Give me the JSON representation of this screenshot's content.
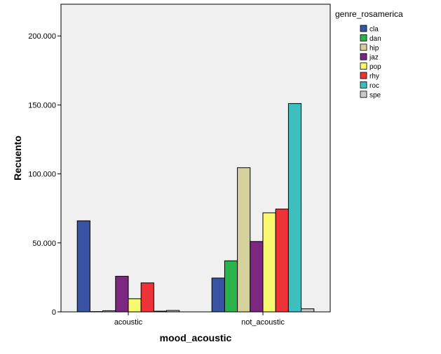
{
  "chart_data": {
    "type": "bar",
    "categories": [
      "acoustic",
      "not_acoustic"
    ],
    "series": [
      {
        "name": "cla",
        "color": "#3953a4",
        "values": [
          66000,
          24500
        ]
      },
      {
        "name": "dan",
        "color": "#28b34b",
        "values": [
          200,
          37000
        ]
      },
      {
        "name": "hip",
        "color": "#d6d09d",
        "values": [
          800,
          104500
        ]
      },
      {
        "name": "jaz",
        "color": "#7c2780",
        "values": [
          25800,
          51000
        ]
      },
      {
        "name": "pop",
        "color": "#f8f871",
        "values": [
          9500,
          71800
        ]
      },
      {
        "name": "rhy",
        "color": "#ee3338",
        "values": [
          21000,
          74500
        ]
      },
      {
        "name": "roc",
        "color": "#3fbebe",
        "values": [
          500,
          151000
        ]
      },
      {
        "name": "spe",
        "color": "#c9c9c9",
        "values": [
          1000,
          2200
        ]
      }
    ],
    "xlabel": "mood_acoustic",
    "ylabel": "Recuento",
    "yticks": [
      {
        "value": 0,
        "label": "0"
      },
      {
        "value": 50000,
        "label": "50.000"
      },
      {
        "value": 100000,
        "label": "100.000"
      },
      {
        "value": 150000,
        "label": "150.000"
      },
      {
        "value": 200000,
        "label": "200.000"
      }
    ],
    "ylim": [
      0,
      223000
    ],
    "legend_title": "genre_rosamerica",
    "legend_position": "top-right",
    "plot_background": "#f0f0f0",
    "grid": false
  }
}
